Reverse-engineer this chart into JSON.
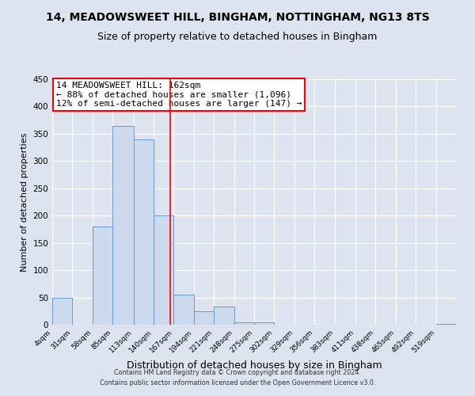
{
  "title": "14, MEADOWSWEET HILL, BINGHAM, NOTTINGHAM, NG13 8TS",
  "subtitle": "Size of property relative to detached houses in Bingham",
  "xlabel": "Distribution of detached houses by size in Bingham",
  "ylabel": "Number of detached properties",
  "bin_edges": [
    4,
    31,
    58,
    85,
    113,
    140,
    167,
    194,
    221,
    248,
    275,
    302,
    329,
    356,
    383,
    411,
    438,
    465,
    492,
    519,
    546
  ],
  "bar_heights": [
    49,
    0,
    180,
    365,
    340,
    200,
    55,
    25,
    33,
    5,
    5,
    0,
    0,
    0,
    0,
    0,
    0,
    0,
    0,
    2
  ],
  "bar_color": "#cdd9ed",
  "bar_edgecolor": "#6699cc",
  "property_line_x": 162,
  "property_line_color": "red",
  "annotation_line1": "14 MEADOWSWEET HILL: 162sqm",
  "annotation_line2": "← 88% of detached houses are smaller (1,096)",
  "annotation_line3": "12% of semi-detached houses are larger (147) →",
  "annotation_box_facecolor": "white",
  "annotation_box_edgecolor": "red",
  "ylim": [
    0,
    450
  ],
  "yticks": [
    0,
    50,
    100,
    150,
    200,
    250,
    300,
    350,
    400,
    450
  ],
  "background_color": "#dde4f0",
  "plot_bg_color": "#dde4f0",
  "grid_color": "white",
  "footer_line1": "Contains HM Land Registry data © Crown copyright and database right 2024.",
  "footer_line2": "Contains public sector information licensed under the Open Government Licence v3.0.",
  "title_fontsize": 10,
  "subtitle_fontsize": 9,
  "xlabel_fontsize": 9,
  "ylabel_fontsize": 8,
  "xtick_fontsize": 6.5,
  "ytick_fontsize": 7.5,
  "annotation_fontsize": 8,
  "footer_fontsize": 5.8
}
